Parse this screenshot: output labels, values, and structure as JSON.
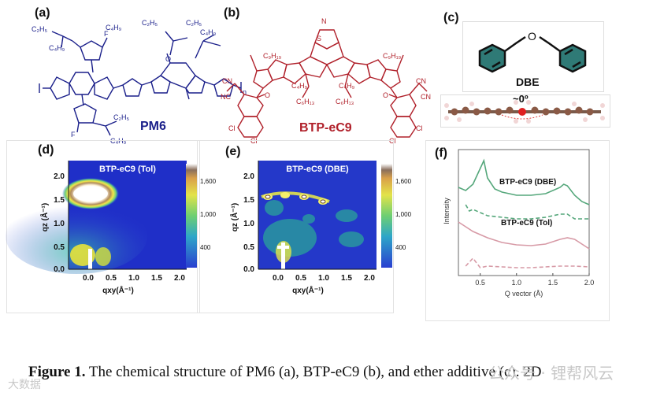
{
  "panels": {
    "a": {
      "label": "(a)",
      "name": "PM6",
      "atoms": {
        "F1": "F",
        "F2": "F",
        "S": "S",
        "O": "O",
        "n": "n",
        "c2h5_a": "C₂H₅",
        "c4h9_a": "C₄H₉",
        "c2h5_b": "C₂H₅",
        "c4h9_b": "C₄H₉",
        "c2h5_c": "C₂H₅",
        "c4h9_c": "C₄H₉",
        "c2h5_d": "C₂H₅",
        "c4h9_d": "C₄H₉"
      }
    },
    "b": {
      "label": "(b)",
      "name": "BTP-eC9",
      "atoms": {
        "N": "N",
        "S": "S",
        "O": "O",
        "Cl": "Cl",
        "CN": "CN",
        "NC": "NC",
        "c9h19": "C₉H₁₉",
        "c4h9": "C₄H₉",
        "c6h13": "C₆H₁₃"
      }
    },
    "c": {
      "label": "(c)",
      "name": "DBE",
      "atoms": {
        "O": "O"
      },
      "angle": "~0º"
    },
    "d": {
      "label": "(d)",
      "title": "BTP-eC9 (Tol)",
      "xlabel": "qxy(Å⁻¹)",
      "ylabel": "qz (Å⁻¹)",
      "xticks": [
        "0.0",
        "0.5",
        "1.0",
        "1.5",
        "2.0"
      ],
      "yticks": [
        "0.0",
        "0.5",
        "1.0",
        "1.5",
        "2.0"
      ],
      "colorbar": [
        "1,600",
        "1,000",
        "400"
      ]
    },
    "e": {
      "label": "(e)",
      "title": "BTP-eC9 (DBE)",
      "xlabel": "qxy(Å⁻¹)",
      "ylabel": "qz (Å⁻¹)",
      "xticks": [
        "0.0",
        "0.5",
        "1.0",
        "1.5",
        "2.0"
      ],
      "yticks": [
        "0.0",
        "0.5",
        "1.0",
        "1.5",
        "2.0"
      ],
      "colorbar": [
        "1,600",
        "1,000",
        "400"
      ]
    },
    "f": {
      "label": "(f)",
      "legend_dbe": "BTP-eC9 (DBE)",
      "legend_tol": "BTP-eC9 (Tol)",
      "xlabel": "Q vector (Å)",
      "ylabel": "Intensity",
      "xticks": [
        "0.5",
        "1.0",
        "1.5",
        "2.0"
      ]
    }
  },
  "caption": {
    "bold": "Figure 1.",
    "text": " The chemical structure of PM6 (a), BTP-eC9 (b), and ether additive (c). 2D"
  },
  "watermark": {
    "left": "大数据",
    "right": "公众号 · 锂帮风云"
  },
  "colors": {
    "pm6": "#1a1f8a",
    "btp": "#b0202a",
    "dbe_ring": "#2f7a76",
    "line_dbe": "#55a77b",
    "line_tol": "#d79aa6"
  },
  "chart_data": [
    {
      "type": "line",
      "series": [
        {
          "name": "BTP-eC9 (DBE)",
          "x": [
            0.2,
            0.3,
            0.4,
            0.5,
            0.55,
            0.6,
            0.7,
            0.8,
            0.9,
            1.0,
            1.2,
            1.4,
            1.6,
            1.65,
            1.7,
            1.8,
            1.9,
            2.0
          ],
          "y": [
            5.6,
            5.4,
            5.8,
            6.8,
            7.3,
            6.2,
            5.5,
            5.3,
            5.2,
            5.1,
            5.1,
            5.2,
            5.6,
            5.8,
            5.7,
            5.1,
            4.7,
            4.5
          ]
        },
        {
          "name": "",
          "x": [
            0.3,
            0.35,
            0.4,
            0.5,
            0.6,
            0.8,
            1.0,
            1.2,
            1.4,
            1.6,
            1.7,
            1.8,
            2.0
          ],
          "y": [
            4.5,
            4.1,
            4.2,
            4.0,
            3.8,
            3.7,
            3.6,
            3.6,
            3.7,
            3.9,
            3.9,
            3.6,
            3.6
          ]
        },
        {
          "name": "BTP-eC9 (Tol)",
          "x": [
            0.2,
            0.3,
            0.4,
            0.6,
            0.8,
            1.0,
            1.2,
            1.4,
            1.6,
            1.7,
            1.8,
            1.9,
            2.0
          ],
          "y": [
            3.4,
            3.1,
            2.8,
            2.4,
            2.1,
            1.95,
            1.9,
            2.0,
            2.3,
            2.4,
            2.3,
            2.0,
            1.7
          ]
        },
        {
          "name": "",
          "x": [
            0.3,
            0.4,
            0.5,
            0.6,
            0.8,
            1.0,
            1.2,
            1.4,
            1.6,
            1.8,
            2.0
          ],
          "y": [
            0.6,
            1.1,
            0.5,
            0.6,
            0.55,
            0.5,
            0.5,
            0.55,
            0.6,
            0.6,
            0.55
          ]
        }
      ],
      "xlim": [
        0.2,
        2.0
      ],
      "xlabel": "Q vector (Å)",
      "ylabel": "Intensity"
    }
  ]
}
